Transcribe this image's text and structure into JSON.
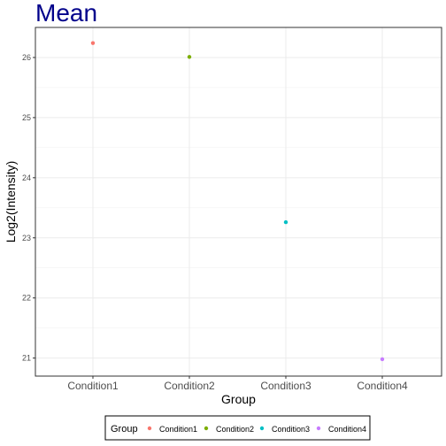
{
  "chart_data": {
    "type": "scatter",
    "title": "Mean",
    "xlabel": "Group",
    "ylabel": "Log2(Intensity)",
    "categories": [
      "Condition1",
      "Condition2",
      "Condition3",
      "Condition4"
    ],
    "values": [
      26.24,
      26.01,
      23.26,
      20.98
    ],
    "ylim": [
      20.7,
      26.5
    ],
    "yticks": [
      21,
      22,
      23,
      24,
      25,
      26
    ],
    "grid": true,
    "legend": {
      "title": "Group",
      "position": "bottom",
      "entries": [
        "Condition1",
        "Condition2",
        "Condition3",
        "Condition4"
      ]
    },
    "colors": [
      "#F8766D",
      "#7CAE00",
      "#00BFC4",
      "#C77CFF"
    ],
    "title_color": "#00008B"
  }
}
